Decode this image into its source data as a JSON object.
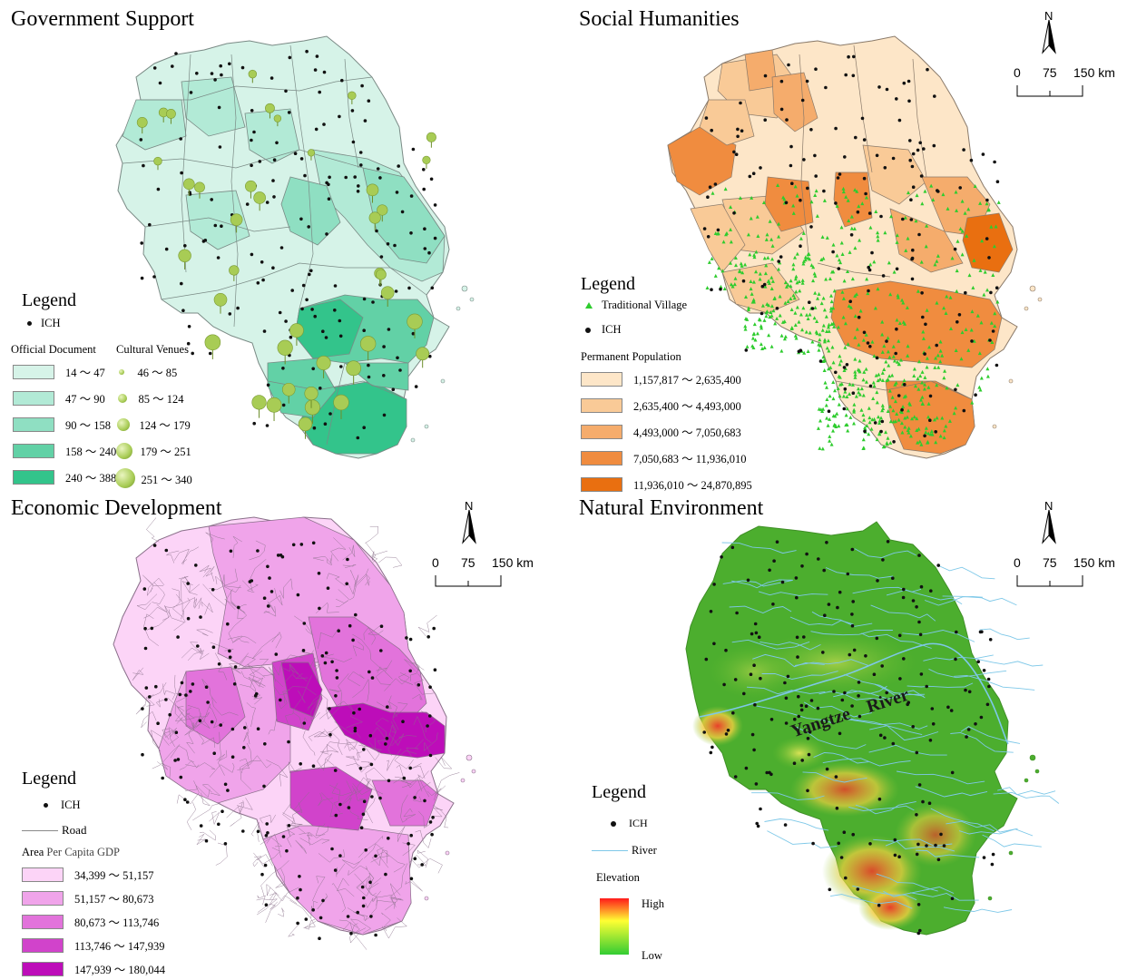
{
  "panels": {
    "government": {
      "title": "Government Support",
      "legend_title": "Legend",
      "ich_label": "ICH",
      "doc_heading": "Official Document",
      "venue_heading": "Cultural Venues",
      "doc_classes": [
        {
          "label": "14 ～ 47",
          "color": "#d6f3e8"
        },
        {
          "label": "47 ～ 90",
          "color": "#b2ead6"
        },
        {
          "label": "90 ～ 158",
          "color": "#8fdfc2"
        },
        {
          "label": "158 ～ 240",
          "color": "#62d1a6"
        },
        {
          "label": "240 ～ 388",
          "color": "#33c48b"
        }
      ],
      "venue_classes": [
        {
          "label": "46 ～ 85"
        },
        {
          "label": "85 ～ 124"
        },
        {
          "label": "124 ～ 179"
        },
        {
          "label": "179 ～ 251"
        },
        {
          "label": "251 ～ 340"
        }
      ]
    },
    "social": {
      "title": "Social Humanities",
      "legend_title": "Legend",
      "village_label": "Traditional Village",
      "ich_label": "ICH",
      "pop_heading": "Permanent Population",
      "pop_classes": [
        {
          "label": "1,157,817 ～ 2,635,400",
          "color": "#fde6c8"
        },
        {
          "label": "2,635,400 ～ 4,493,000",
          "color": "#f9ca97"
        },
        {
          "label": "4,493,000 ～ 7,050,683",
          "color": "#f5ac6c"
        },
        {
          "label": "7,050,683 ～ 11,936,010",
          "color": "#f08c3f"
        },
        {
          "label": "11,936,010 ～ 24,870,895",
          "color": "#e96f10"
        }
      ]
    },
    "economic": {
      "title": "Economic Development",
      "legend_title": "Legend",
      "ich_label": "ICH",
      "road_label": "Road",
      "gdp_heading_a": "Area",
      "gdp_heading_b": "Per Capita GDP",
      "gdp_classes": [
        {
          "label": "34,399 ～ 51,157",
          "color": "#fcd4f7"
        },
        {
          "label": "51,157 ～ 80,673",
          "color": "#f0a4ea"
        },
        {
          "label": "80,673 ～ 113,746",
          "color": "#e273db"
        },
        {
          "label": "113,746 ～ 147,939",
          "color": "#d143cb"
        },
        {
          "label": "147,939 ～ 180,044",
          "color": "#bd0db9"
        }
      ]
    },
    "natural": {
      "title": "Natural Environment",
      "legend_title": "Legend",
      "ich_label": "ICH",
      "river_label": "River",
      "elev_heading": "Elevation",
      "elev_high": "High",
      "elev_low": "Low",
      "yangtze_a": "Yangtze",
      "yangtze_b": "River"
    }
  },
  "scale_bar": {
    "north": "N",
    "t0": "0",
    "t1": "75",
    "t2": "150 km"
  },
  "colors": {
    "ich_dot": "#111111",
    "village": "#2ecc2e",
    "venue_pin": "#a8cc55",
    "road": "#8a8a8a",
    "river": "#7ec8e8",
    "land_green": "#4cae2e"
  }
}
